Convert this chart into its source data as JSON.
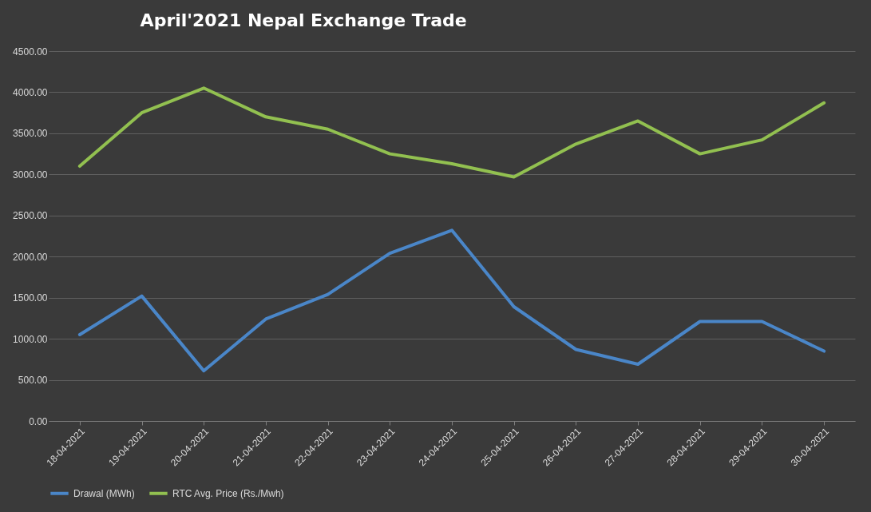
{
  "chart_data": {
    "type": "line",
    "title": "April'2021 Nepal Exchange Trade",
    "categories": [
      "18-04-2021",
      "19-04-2021",
      "20-04-2021",
      "21-04-2021",
      "22-04-2021",
      "23-04-2021",
      "24-04-2021",
      "25-04-2021",
      "26-04-2021",
      "27-04-2021",
      "28-04-2021",
      "29-04-2021",
      "30-04-2021"
    ],
    "series": [
      {
        "name": "Drawal (MWh)",
        "color": "#4a86c8",
        "values": [
          1050,
          1520,
          610,
          1240,
          1540,
          2040,
          2320,
          1390,
          870,
          690,
          1210,
          1210,
          850
        ]
      },
      {
        "name": "RTC Avg. Price (Rs./Mwh)",
        "color": "#92c050",
        "values": [
          3100,
          3750,
          4050,
          3700,
          3550,
          3250,
          3130,
          2970,
          3370,
          3650,
          3250,
          3420,
          3870
        ]
      }
    ],
    "ylim": [
      0,
      4500
    ],
    "yticks": [
      {
        "value": 0,
        "label": "0.00"
      },
      {
        "value": 500,
        "label": "500.00"
      },
      {
        "value": 1000,
        "label": "1000.00"
      },
      {
        "value": 1500,
        "label": "1500.00"
      },
      {
        "value": 2000,
        "label": "2000.00"
      },
      {
        "value": 2500,
        "label": "2500.00"
      },
      {
        "value": 3000,
        "label": "3000.00"
      },
      {
        "value": 3500,
        "label": "3500.00"
      },
      {
        "value": 4000,
        "label": "4000.00"
      },
      {
        "value": 4500,
        "label": "4500.00"
      }
    ],
    "grid": "y",
    "legend": "bottom",
    "marker": "none",
    "line_style": "solid"
  }
}
